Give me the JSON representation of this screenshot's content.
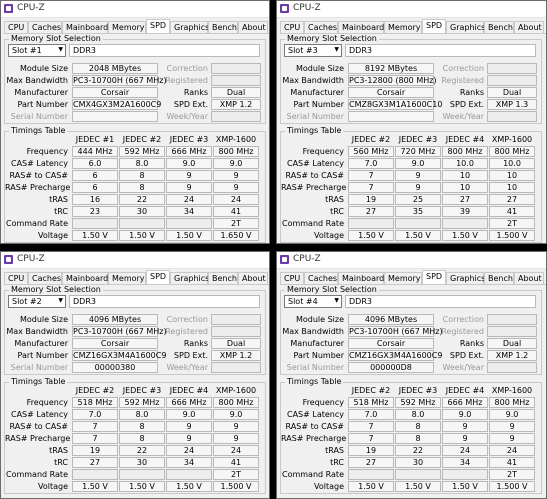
{
  "app_title": "CPU-Z",
  "tabs": [
    "CPU",
    "Caches",
    "Mainboard",
    "Memory",
    "SPD",
    "Graphics",
    "Bench",
    "About"
  ],
  "group_slot": "Memory Slot Selection",
  "group_timings": "Timings Table",
  "field_labels": {
    "module_size": "Module Size",
    "max_bandwidth": "Max Bandwidth",
    "manufacturer": "Manufacturer",
    "part_number": "Part Number",
    "serial_number": "Serial Number",
    "correction": "Correction",
    "registered": "Registered",
    "ranks": "Ranks",
    "spd_ext": "SPD Ext.",
    "week_year": "Week/Year"
  },
  "timing_rows": [
    "Frequency",
    "CAS# Latency",
    "RAS# to CAS#",
    "RAS# Precharge",
    "tRAS",
    "tRC",
    "Command Rate",
    "Voltage"
  ],
  "windows": [
    {
      "slot": "Slot #1",
      "type": "DDR3",
      "module_size": "2048 MBytes",
      "max_bandwidth": "PC3-10700H (667 MHz)",
      "manufacturer": "Corsair",
      "part_number": "CMX4GX3M2A1600C9",
      "serial_number": "",
      "ranks": "Dual",
      "spd_ext": "XMP 1.2",
      "jedec": [
        "JEDEC #1",
        "JEDEC #2",
        "JEDEC #3",
        "XMP-1600"
      ],
      "timings": [
        [
          "444 MHz",
          "592 MHz",
          "666 MHz",
          "800 MHz"
        ],
        [
          "6.0",
          "8.0",
          "9.0",
          "9.0"
        ],
        [
          "6",
          "8",
          "9",
          "9"
        ],
        [
          "6",
          "8",
          "9",
          "9"
        ],
        [
          "16",
          "22",
          "24",
          "24"
        ],
        [
          "23",
          "30",
          "34",
          "41"
        ],
        [
          "",
          "",
          "",
          "2T"
        ],
        [
          "1.50 V",
          "1.50 V",
          "1.50 V",
          "1.650 V"
        ]
      ]
    },
    {
      "slot": "Slot #3",
      "type": "DDR3",
      "module_size": "8192 MBytes",
      "max_bandwidth": "PC3-12800 (800 MHz)",
      "manufacturer": "Corsair",
      "part_number": "CMZ8GX3M1A1600C10",
      "serial_number": "",
      "ranks": "Dual",
      "spd_ext": "XMP 1.3",
      "jedec": [
        "JEDEC #2",
        "JEDEC #3",
        "JEDEC #4",
        "XMP-1600"
      ],
      "timings": [
        [
          "560 MHz",
          "720 MHz",
          "800 MHz",
          "800 MHz"
        ],
        [
          "7.0",
          "9.0",
          "10.0",
          "10.0"
        ],
        [
          "7",
          "9",
          "10",
          "10"
        ],
        [
          "7",
          "9",
          "10",
          "10"
        ],
        [
          "19",
          "25",
          "27",
          "27"
        ],
        [
          "27",
          "35",
          "39",
          "41"
        ],
        [
          "",
          "",
          "",
          "2T"
        ],
        [
          "1.50 V",
          "1.50 V",
          "1.50 V",
          "1.500 V"
        ]
      ]
    },
    {
      "slot": "Slot #2",
      "type": "DDR3",
      "module_size": "4096 MBytes",
      "max_bandwidth": "PC3-10700H (667 MHz)",
      "manufacturer": "Corsair",
      "part_number": "CMZ16GX3M4A1600C9",
      "serial_number": "00000380",
      "ranks": "Dual",
      "spd_ext": "XMP 1.2",
      "jedec": [
        "JEDEC #2",
        "JEDEC #3",
        "JEDEC #4",
        "XMP-1600"
      ],
      "timings": [
        [
          "518 MHz",
          "592 MHz",
          "666 MHz",
          "800 MHz"
        ],
        [
          "7.0",
          "8.0",
          "9.0",
          "9.0"
        ],
        [
          "7",
          "8",
          "9",
          "9"
        ],
        [
          "7",
          "8",
          "9",
          "9"
        ],
        [
          "19",
          "22",
          "24",
          "24"
        ],
        [
          "27",
          "30",
          "34",
          "41"
        ],
        [
          "",
          "",
          "",
          "2T"
        ],
        [
          "1.50 V",
          "1.50 V",
          "1.50 V",
          "1.500 V"
        ]
      ]
    },
    {
      "slot": "Slot #4",
      "type": "DDR3",
      "module_size": "4096 MBytes",
      "max_bandwidth": "PC3-10700H (667 MHz)",
      "manufacturer": "Corsair",
      "part_number": "CMZ16GX3M4A1600C9",
      "serial_number": "000000D8",
      "ranks": "Dual",
      "spd_ext": "XMP 1.2",
      "jedec": [
        "JEDEC #2",
        "JEDEC #3",
        "JEDEC #4",
        "XMP-1600"
      ],
      "timings": [
        [
          "518 MHz",
          "592 MHz",
          "666 MHz",
          "800 MHz"
        ],
        [
          "7.0",
          "8.0",
          "9.0",
          "9.0"
        ],
        [
          "7",
          "8",
          "9",
          "9"
        ],
        [
          "7",
          "8",
          "9",
          "9"
        ],
        [
          "19",
          "22",
          "24",
          "24"
        ],
        [
          "27",
          "30",
          "34",
          "41"
        ],
        [
          "",
          "",
          "",
          "2T"
        ],
        [
          "1.50 V",
          "1.50 V",
          "1.50 V",
          "1.500 V"
        ]
      ]
    }
  ]
}
